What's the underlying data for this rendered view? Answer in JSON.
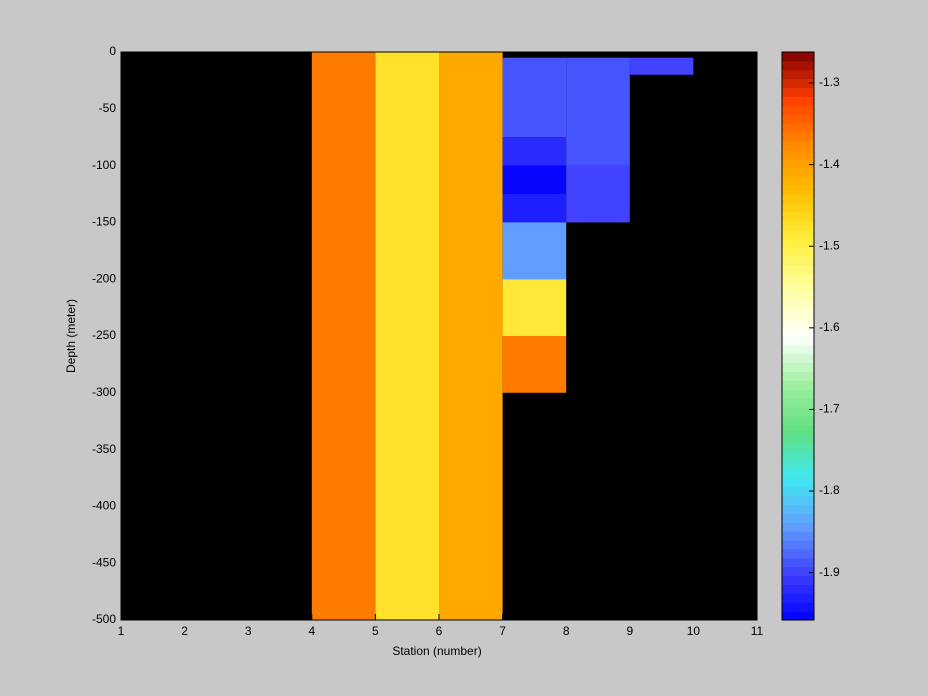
{
  "chart_data": {
    "type": "heatmap",
    "xlabel": "Station (number)",
    "ylabel": "Depth (meter)",
    "xlim": [
      1,
      11
    ],
    "xticks": [
      1,
      2,
      3,
      4,
      5,
      6,
      7,
      8,
      9,
      10,
      11
    ],
    "ylim": [
      -500,
      0
    ],
    "yticks": [
      0,
      -50,
      -100,
      -150,
      -200,
      -250,
      -300,
      -350,
      -400,
      -450,
      -500
    ],
    "background": "#000000",
    "clim": [
      -1.958,
      -1.262
    ],
    "cticks": [
      -1.3,
      -1.4,
      -1.5,
      -1.6,
      -1.7,
      -1.8,
      -1.9
    ],
    "colormap": [
      "#0000ff",
      "#4040ff",
      "#60a0ff",
      "#40e8f0",
      "#60e080",
      "#a0f0a0",
      "#ffffff",
      "#ffffa0",
      "#fff040",
      "#ffc000",
      "#ff8c00",
      "#ff4000",
      "#800000"
    ],
    "cells": [
      {
        "x": [
          4,
          5
        ],
        "y": [
          0,
          -500
        ],
        "value": -1.36
      },
      {
        "x": [
          5,
          6
        ],
        "y": [
          0,
          -500
        ],
        "value": -1.47
      },
      {
        "x": [
          6,
          7
        ],
        "y": [
          0,
          -500
        ],
        "value": -1.41
      },
      {
        "x": [
          7,
          8
        ],
        "y": [
          -5,
          -75
        ],
        "value": -1.89
      },
      {
        "x": [
          7,
          8
        ],
        "y": [
          -75,
          -100
        ],
        "value": -1.92
      },
      {
        "x": [
          7,
          8
        ],
        "y": [
          -100,
          -125
        ],
        "value": -1.955
      },
      {
        "x": [
          7,
          8
        ],
        "y": [
          -125,
          -150
        ],
        "value": -1.935
      },
      {
        "x": [
          7,
          8
        ],
        "y": [
          -150,
          -200
        ],
        "value": -1.842
      },
      {
        "x": [
          7,
          8
        ],
        "y": [
          -200,
          -250
        ],
        "value": -1.49
      },
      {
        "x": [
          7,
          8
        ],
        "y": [
          -250,
          -300
        ],
        "value": -1.36
      },
      {
        "x": [
          8,
          9
        ],
        "y": [
          -5,
          -100
        ],
        "value": -1.89
      },
      {
        "x": [
          8,
          9
        ],
        "y": [
          -100,
          -150
        ],
        "value": -1.9
      },
      {
        "x": [
          9,
          10
        ],
        "y": [
          -5,
          -20
        ],
        "value": -1.9
      }
    ]
  }
}
